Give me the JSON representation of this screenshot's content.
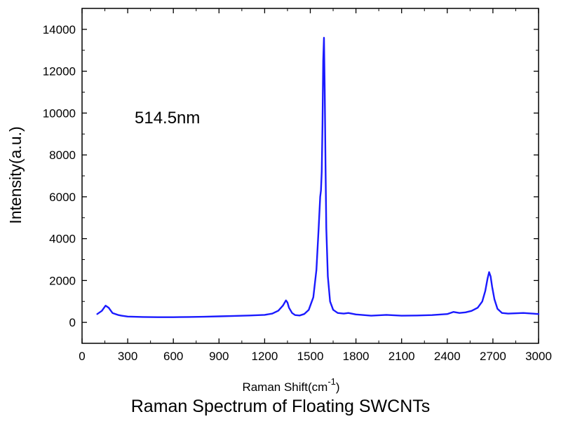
{
  "chart_data": {
    "type": "line",
    "title": "Raman Spectrum of Floating SWCNTs",
    "annotation": "514.5nm",
    "xlabel": "Raman Shift(cm",
    "xlabel_superscript": "-1",
    "xlabel_suffix": ")",
    "ylabel": "Intensity(a.u.)",
    "xlim": [
      0,
      3000
    ],
    "ylim": [
      -1000,
      15000
    ],
    "x_ticks": [
      0,
      300,
      600,
      900,
      1200,
      1500,
      1800,
      2100,
      2400,
      2700,
      3000
    ],
    "y_ticks": [
      0,
      2000,
      4000,
      6000,
      8000,
      10000,
      12000,
      14000
    ],
    "grid": false,
    "series": [
      {
        "color": "#1a1aff",
        "x": [
          100,
          130,
          155,
          165,
          175,
          185,
          200,
          220,
          240,
          260,
          280,
          300,
          400,
          500,
          600,
          700,
          800,
          900,
          1000,
          1100,
          1200,
          1250,
          1290,
          1320,
          1340,
          1350,
          1360,
          1380,
          1400,
          1430,
          1460,
          1490,
          1520,
          1540,
          1555,
          1565,
          1570,
          1575,
          1580,
          1585,
          1590,
          1595,
          1600,
          1605,
          1615,
          1630,
          1650,
          1680,
          1720,
          1750,
          1800,
          1900,
          2000,
          2100,
          2200,
          2300,
          2400,
          2440,
          2480,
          2520,
          2560,
          2600,
          2630,
          2650,
          2665,
          2675,
          2685,
          2695,
          2710,
          2730,
          2760,
          2800,
          2900,
          3000
        ],
        "y": [
          400,
          550,
          800,
          750,
          700,
          600,
          450,
          400,
          350,
          320,
          300,
          280,
          260,
          250,
          250,
          260,
          270,
          290,
          310,
          330,
          360,
          420,
          560,
          800,
          1050,
          950,
          700,
          450,
          350,
          330,
          400,
          600,
          1200,
          2500,
          4500,
          6000,
          6300,
          7200,
          9500,
          12500,
          13600,
          11000,
          7500,
          4500,
          2200,
          1000,
          600,
          450,
          420,
          450,
          380,
          320,
          360,
          320,
          330,
          350,
          400,
          500,
          450,
          480,
          550,
          700,
          1000,
          1500,
          2100,
          2400,
          2200,
          1700,
          1100,
          650,
          450,
          420,
          450,
          400
        ]
      }
    ]
  }
}
